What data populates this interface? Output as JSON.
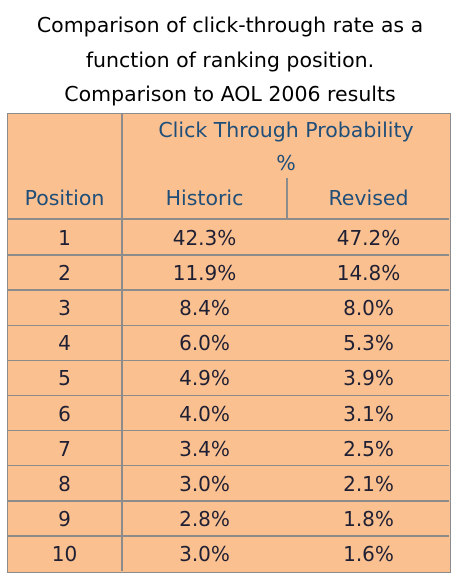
{
  "title_lines": [
    "Comparison of click-through rate as a",
    "function of ranking position.",
    "Comparison to AOL 2006 results"
  ],
  "colors": {
    "table_fill": "#fac090",
    "grid_line": "#8c8c8c",
    "header_text": "#1f4e79",
    "body_text": "#1f1f33"
  },
  "chart_data": {
    "type": "table",
    "group_header_lines": [
      "Click Through Probability",
      "%"
    ],
    "columns": [
      "Position",
      "Historic",
      "Revised"
    ],
    "rows": [
      [
        "1",
        "42.3%",
        "47.2%"
      ],
      [
        "2",
        "11.9%",
        "14.8%"
      ],
      [
        "3",
        "8.4%",
        "8.0%"
      ],
      [
        "4",
        "6.0%",
        "5.3%"
      ],
      [
        "5",
        "4.9%",
        "3.9%"
      ],
      [
        "6",
        "4.0%",
        "3.1%"
      ],
      [
        "7",
        "3.4%",
        "2.5%"
      ],
      [
        "8",
        "3.0%",
        "2.1%"
      ],
      [
        "9",
        "2.8%",
        "1.8%"
      ],
      [
        "10",
        "3.0%",
        "1.6%"
      ]
    ]
  }
}
